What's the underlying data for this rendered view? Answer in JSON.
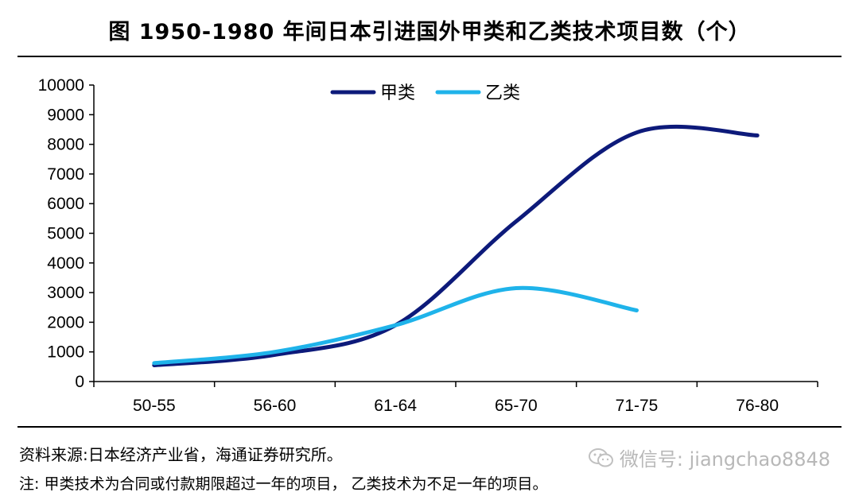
{
  "header": {
    "title": "图    1950-1980 年间日本引进国外甲类和乙类技术项目数（个）"
  },
  "chart_data": {
    "type": "line",
    "categories": [
      "50-55",
      "56-60",
      "61-64",
      "65-70",
      "71-75",
      "76-80"
    ],
    "series": [
      {
        "name": "甲类",
        "color": "#0d1a7a",
        "values": [
          550,
          900,
          1900,
          5400,
          8400,
          8300
        ]
      },
      {
        "name": "乙类",
        "color": "#1fb3ea",
        "values": [
          620,
          1000,
          1900,
          3150,
          2400,
          null
        ]
      }
    ],
    "yticks": [
      "0",
      "1000",
      "2000",
      "3000",
      "4000",
      "5000",
      "6000",
      "7000",
      "8000",
      "9000",
      "10000"
    ],
    "ylim": [
      0,
      10000
    ],
    "legend": "top-center",
    "grid": false
  },
  "footer": {
    "source": "资料来源:日本经济产业省，海通证券研究所。",
    "note": "注:  甲类技术为合同或付款期限超过一年的项目， 乙类技术为不足一年的项目。"
  },
  "watermark": {
    "icon": "wechat-icon",
    "text": "微信号: jiangchao8848"
  }
}
